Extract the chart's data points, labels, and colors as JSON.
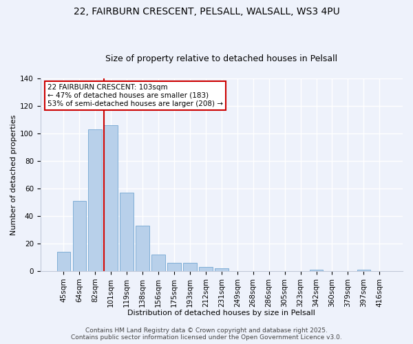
{
  "title_line1": "22, FAIRBURN CRESCENT, PELSALL, WALSALL, WS3 4PU",
  "title_line2": "Size of property relative to detached houses in Pelsall",
  "xlabel": "Distribution of detached houses by size in Pelsall",
  "ylabel": "Number of detached properties",
  "bar_labels": [
    "45sqm",
    "64sqm",
    "82sqm",
    "101sqm",
    "119sqm",
    "138sqm",
    "156sqm",
    "175sqm",
    "193sqm",
    "212sqm",
    "231sqm",
    "249sqm",
    "268sqm",
    "286sqm",
    "305sqm",
    "323sqm",
    "342sqm",
    "360sqm",
    "379sqm",
    "397sqm",
    "416sqm"
  ],
  "bar_values": [
    14,
    51,
    103,
    106,
    57,
    33,
    12,
    6,
    6,
    3,
    2,
    0,
    0,
    0,
    0,
    0,
    1,
    0,
    0,
    1,
    0
  ],
  "bar_color": "#b8d0ea",
  "bar_edge_color": "#7faed6",
  "vline_x_index": 3,
  "vline_color": "#cc0000",
  "ylim": [
    0,
    140
  ],
  "yticks": [
    0,
    20,
    40,
    60,
    80,
    100,
    120,
    140
  ],
  "annotation_line1": "22 FAIRBURN CRESCENT: 103sqm",
  "annotation_line2": "← 47% of detached houses are smaller (183)",
  "annotation_line3": "53% of semi-detached houses are larger (208) →",
  "footer_text": "Contains HM Land Registry data © Crown copyright and database right 2025.\nContains public sector information licensed under the Open Government Licence v3.0.",
  "background_color": "#eef2fb",
  "grid_color": "#ffffff",
  "title_fontsize": 10,
  "subtitle_fontsize": 9,
  "axis_label_fontsize": 8,
  "tick_fontsize": 7.5,
  "annotation_fontsize": 7.5,
  "footer_fontsize": 6.5
}
